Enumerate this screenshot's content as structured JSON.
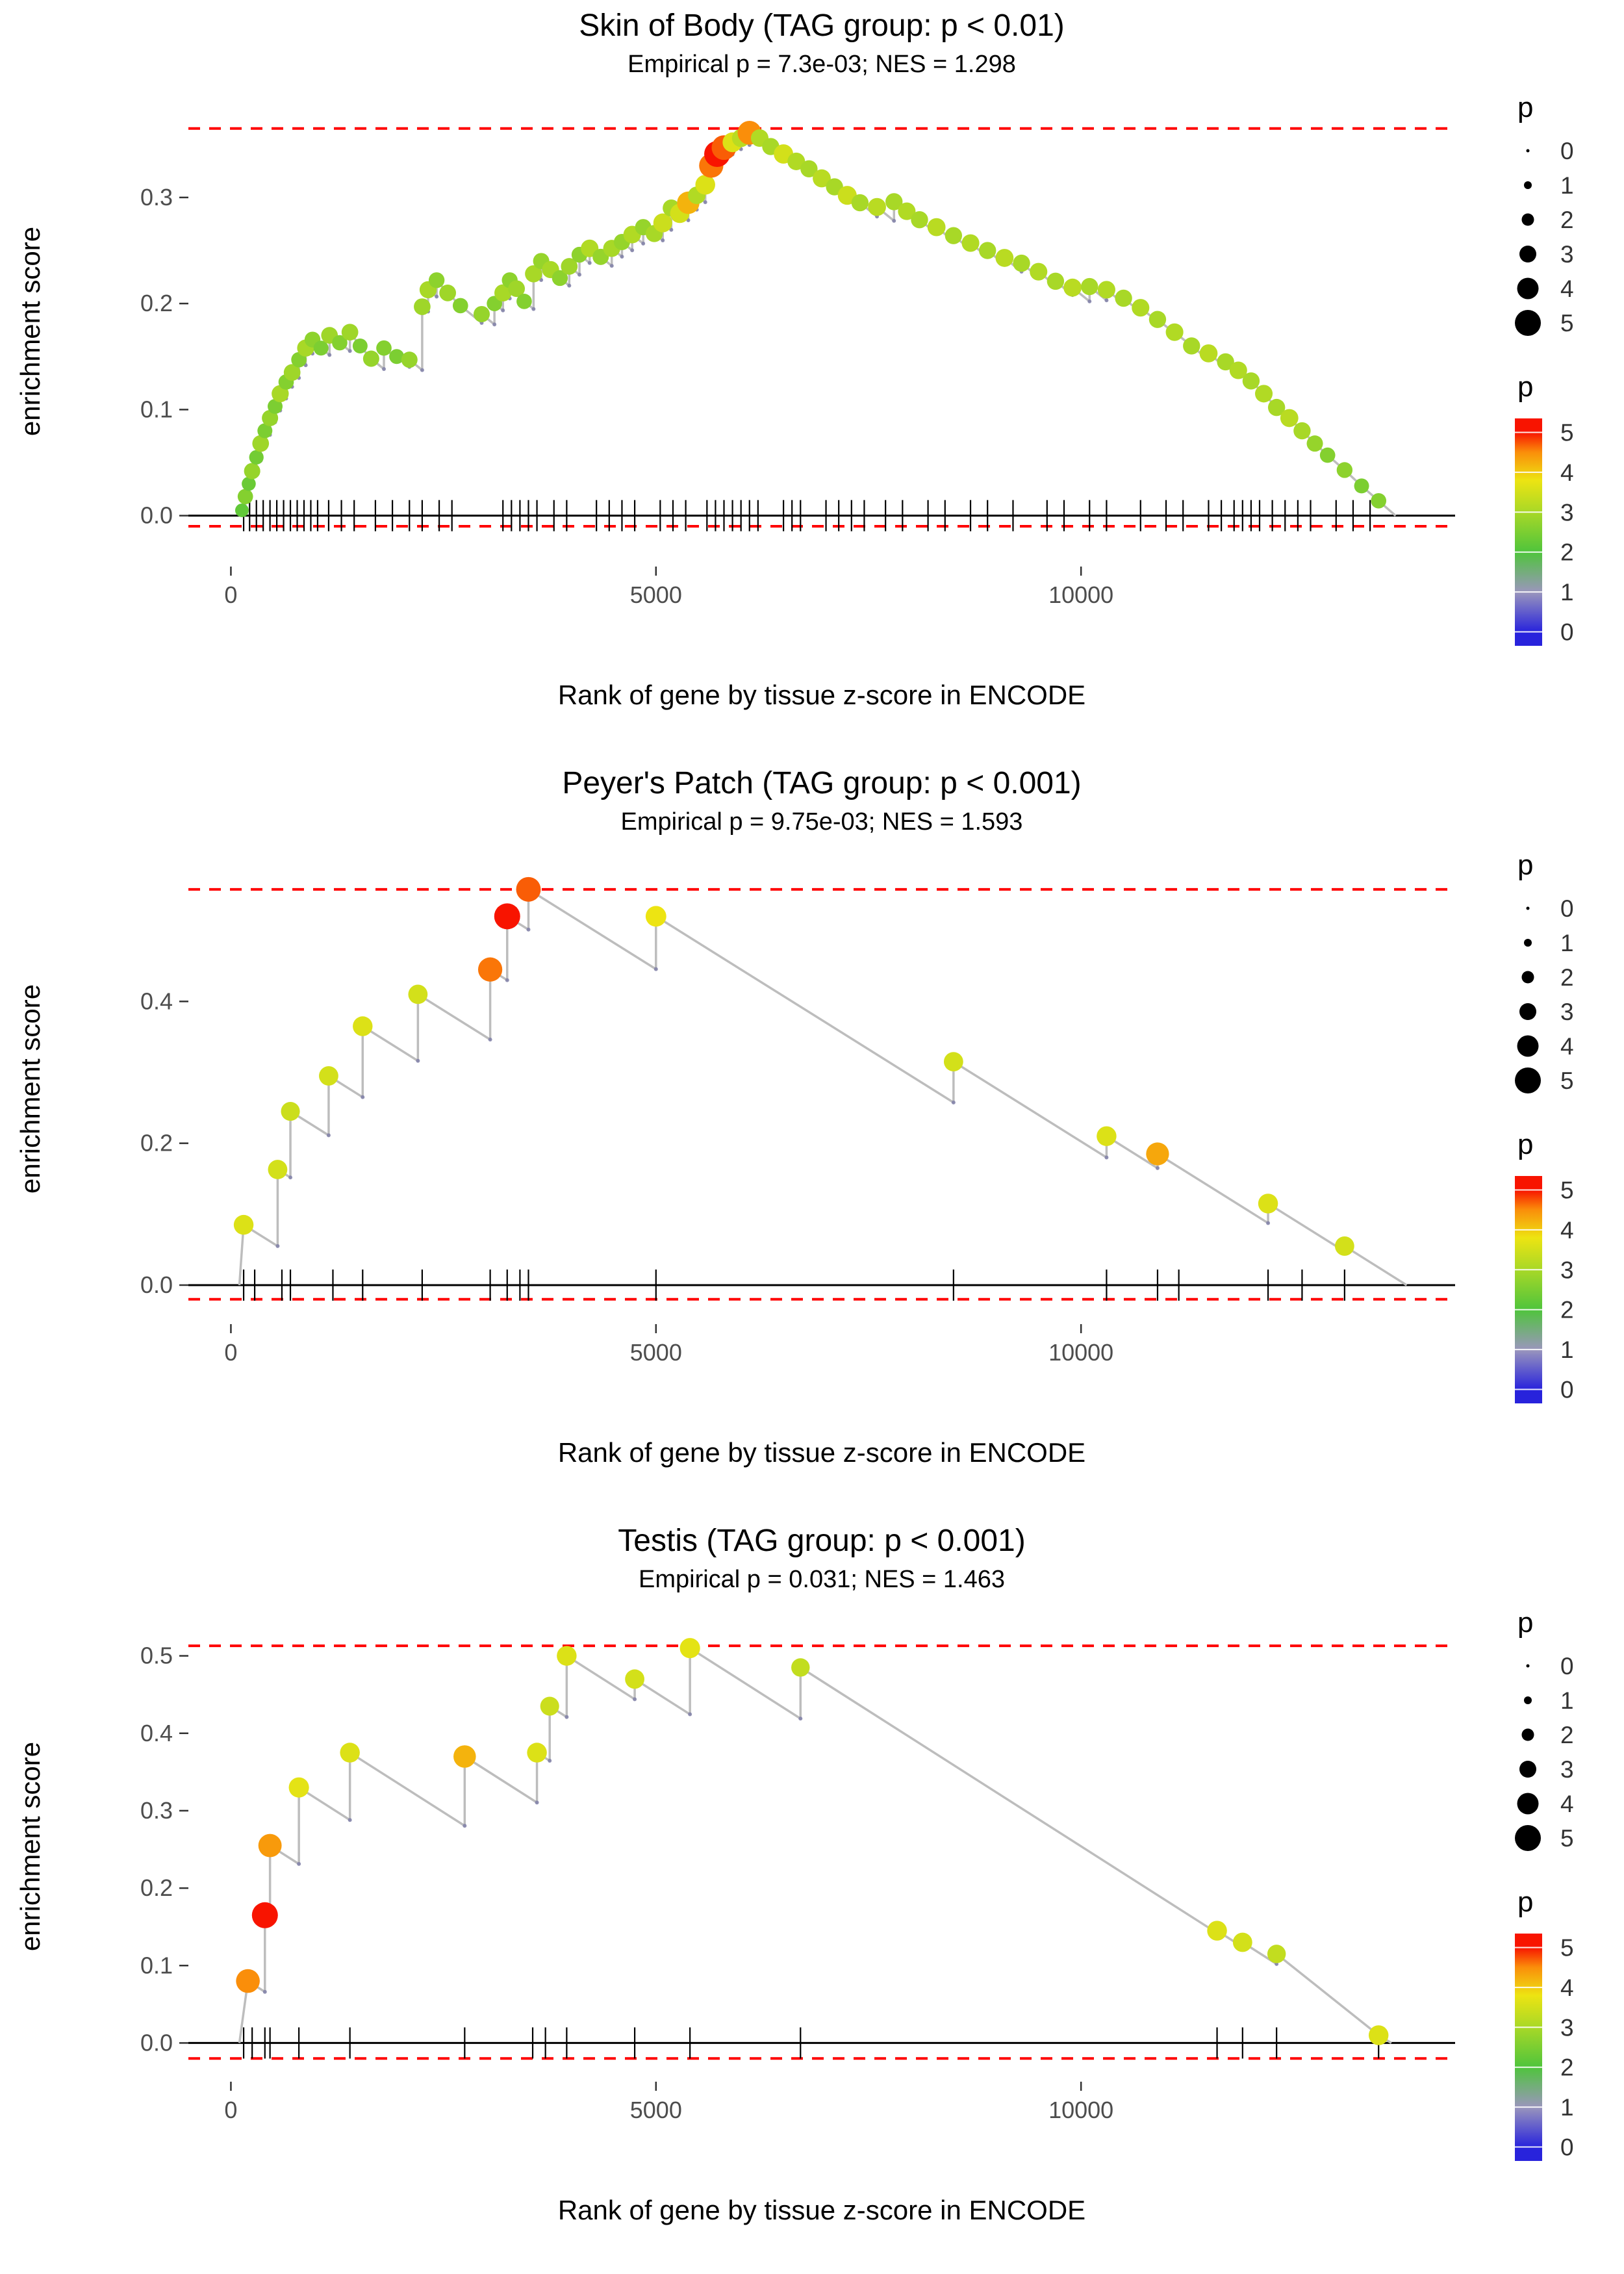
{
  "style": {
    "background": "#ffffff",
    "dashed_line_color": "#FF0000",
    "curve_color": "#BDBDBD",
    "zero_line_color": "#000000",
    "rug_color": "#000000",
    "valley_dot_color": "#8080A8",
    "axis_text_color": "#4D4D4D",
    "colormap_stops": [
      [
        0,
        "#2823DC"
      ],
      [
        1,
        "#9A96BC"
      ],
      [
        2,
        "#4FC43C"
      ],
      [
        3,
        "#A8D827"
      ],
      [
        3.8,
        "#EDE412"
      ],
      [
        4.5,
        "#FA8E0A"
      ],
      [
        5,
        "#F81400"
      ]
    ]
  },
  "legend": {
    "size_title": "p",
    "size_values": [
      "0",
      "1",
      "2",
      "3",
      "4",
      "5"
    ],
    "color_title": "p",
    "color_tick_values": [
      "5",
      "4",
      "3",
      "2",
      "1",
      "0"
    ]
  },
  "chart_data": [
    {
      "type": "line",
      "title": "Skin of Body (TAG group: p < 0.01)",
      "subtitle": "Empirical p = 7.3e-03; NES = 1.298",
      "xlabel": "Rank of gene by tissue z-score in ENCODE",
      "ylabel": "enrichment score",
      "x_tick_values": [
        0,
        5000,
        10000
      ],
      "x_tick_labels": [
        "0",
        "5000",
        "10000"
      ],
      "y_tick_values": [
        0.0,
        0.1,
        0.2,
        0.3
      ],
      "y_tick_labels": [
        "0.0",
        "0.1",
        "0.2",
        "0.3"
      ],
      "xlim": [
        -500,
        14400
      ],
      "ylim": [
        -0.048,
        0.39
      ],
      "hline_top": 0.365,
      "hline_bottom": -0.01,
      "curve_start": 100,
      "curve_end": 13700,
      "decline_rate": 6.5e-05,
      "points": [
        [
          130,
          0.005,
          2.2
        ],
        [
          170,
          0.018,
          2.6
        ],
        [
          210,
          0.03,
          2.3
        ],
        [
          250,
          0.042,
          2.8
        ],
        [
          300,
          0.055,
          2.4
        ],
        [
          350,
          0.068,
          2.9
        ],
        [
          400,
          0.08,
          2.5
        ],
        [
          460,
          0.092,
          2.8
        ],
        [
          520,
          0.103,
          2.5
        ],
        [
          580,
          0.115,
          3.0
        ],
        [
          650,
          0.126,
          2.6
        ],
        [
          720,
          0.135,
          2.9
        ],
        [
          800,
          0.147,
          2.6
        ],
        [
          880,
          0.158,
          3.0
        ],
        [
          960,
          0.166,
          2.7
        ],
        [
          1060,
          0.158,
          2.5
        ],
        [
          1160,
          0.17,
          2.9
        ],
        [
          1280,
          0.163,
          2.6
        ],
        [
          1400,
          0.173,
          2.9
        ],
        [
          1520,
          0.16,
          2.5
        ],
        [
          1650,
          0.148,
          2.8
        ],
        [
          1800,
          0.158,
          2.6
        ],
        [
          1950,
          0.15,
          2.5
        ],
        [
          2100,
          0.147,
          2.8
        ],
        [
          2250,
          0.197,
          2.9
        ],
        [
          2320,
          0.213,
          3.0
        ],
        [
          2420,
          0.222,
          2.7
        ],
        [
          2550,
          0.21,
          2.9
        ],
        [
          2700,
          0.198,
          2.6
        ],
        [
          2950,
          0.19,
          2.8
        ],
        [
          3100,
          0.2,
          2.6
        ],
        [
          3200,
          0.21,
          3.0
        ],
        [
          3280,
          0.222,
          2.7
        ],
        [
          3360,
          0.214,
          2.9
        ],
        [
          3450,
          0.202,
          2.6
        ],
        [
          3560,
          0.228,
          3.0
        ],
        [
          3650,
          0.24,
          2.8
        ],
        [
          3760,
          0.232,
          3.0
        ],
        [
          3870,
          0.224,
          2.7
        ],
        [
          3980,
          0.235,
          2.9
        ],
        [
          4100,
          0.246,
          2.7
        ],
        [
          4220,
          0.252,
          3.1
        ],
        [
          4350,
          0.244,
          2.8
        ],
        [
          4480,
          0.252,
          3.0
        ],
        [
          4600,
          0.258,
          2.8
        ],
        [
          4720,
          0.265,
          3.1
        ],
        [
          4850,
          0.272,
          2.8
        ],
        [
          4980,
          0.266,
          3.0
        ],
        [
          5080,
          0.276,
          3.4
        ],
        [
          5180,
          0.29,
          3.0
        ],
        [
          5280,
          0.285,
          3.5
        ],
        [
          5380,
          0.295,
          4.2
        ],
        [
          5480,
          0.302,
          3.1
        ],
        [
          5580,
          0.312,
          3.6
        ],
        [
          5650,
          0.33,
          4.6
        ],
        [
          5720,
          0.341,
          5.0
        ],
        [
          5800,
          0.347,
          4.7
        ],
        [
          5900,
          0.352,
          3.6
        ],
        [
          6000,
          0.356,
          3.2
        ],
        [
          6100,
          0.361,
          4.5
        ],
        [
          6220,
          0.356,
          3.1
        ],
        [
          6350,
          0.348,
          3.0
        ],
        [
          6500,
          0.341,
          3.5
        ],
        [
          6650,
          0.334,
          3.1
        ],
        [
          6800,
          0.327,
          3.0
        ],
        [
          6950,
          0.318,
          3.2
        ],
        [
          7100,
          0.31,
          3.0
        ],
        [
          7250,
          0.302,
          3.4
        ],
        [
          7400,
          0.295,
          3.0
        ],
        [
          7600,
          0.291,
          3.2
        ],
        [
          7800,
          0.296,
          3.0
        ],
        [
          7950,
          0.287,
          3.1
        ],
        [
          8100,
          0.279,
          3.0
        ],
        [
          8300,
          0.272,
          3.2
        ],
        [
          8500,
          0.264,
          3.0
        ],
        [
          8700,
          0.257,
          3.1
        ],
        [
          8900,
          0.25,
          3.0
        ],
        [
          9100,
          0.243,
          3.2
        ],
        [
          9300,
          0.238,
          3.0
        ],
        [
          9500,
          0.23,
          3.1
        ],
        [
          9700,
          0.221,
          3.0
        ],
        [
          9900,
          0.215,
          3.2
        ],
        [
          10100,
          0.216,
          3.0
        ],
        [
          10300,
          0.213,
          3.1
        ],
        [
          10500,
          0.205,
          3.0
        ],
        [
          10700,
          0.196,
          3.1
        ],
        [
          10900,
          0.185,
          3.0
        ],
        [
          11100,
          0.173,
          3.1
        ],
        [
          11300,
          0.16,
          3.0
        ],
        [
          11500,
          0.153,
          3.2
        ],
        [
          11700,
          0.145,
          3.0
        ],
        [
          11850,
          0.137,
          3.1
        ],
        [
          12000,
          0.127,
          3.0
        ],
        [
          12150,
          0.115,
          3.1
        ],
        [
          12300,
          0.102,
          3.0
        ],
        [
          12450,
          0.092,
          3.2
        ],
        [
          12600,
          0.08,
          3.0
        ],
        [
          12750,
          0.068,
          2.8
        ],
        [
          12900,
          0.057,
          2.6
        ],
        [
          13100,
          0.043,
          2.7
        ],
        [
          13300,
          0.028,
          2.5
        ],
        [
          13500,
          0.014,
          2.6
        ]
      ],
      "rug": [
        150,
        220,
        300,
        380,
        460,
        540,
        620,
        700,
        780,
        860,
        940,
        1020,
        1150,
        1300,
        1450,
        1700,
        1900,
        2100,
        2250,
        2450,
        2600,
        3200,
        3300,
        3400,
        3500,
        3600,
        3800,
        3950,
        4300,
        4450,
        4600,
        4750,
        5050,
        5200,
        5350,
        5600,
        5700,
        5800,
        5900,
        6000,
        6100,
        6200,
        6500,
        6600,
        6700,
        7000,
        7150,
        7300,
        7450,
        7700,
        7900,
        8200,
        8400,
        8700,
        8900,
        9200,
        9600,
        9800,
        10100,
        10300,
        10700,
        11000,
        11200,
        11500,
        11650,
        11800,
        11900,
        12000,
        12100,
        12250,
        12400,
        12550,
        12700,
        13000,
        13200,
        13400
      ]
    },
    {
      "type": "line",
      "title": "Peyer's Patch (TAG group: p < 0.001)",
      "subtitle": "Empirical p = 9.75e-03; NES = 1.593",
      "xlabel": "Rank of gene by tissue z-score in ENCODE",
      "ylabel": "enrichment score",
      "x_tick_values": [
        0,
        5000,
        10000
      ],
      "x_tick_labels": [
        "0",
        "5000",
        "10000"
      ],
      "y_tick_values": [
        0.0,
        0.2,
        0.4
      ],
      "y_tick_labels": [
        "0.0",
        "0.2",
        "0.4"
      ],
      "xlim": [
        -500,
        14400
      ],
      "ylim": [
        -0.055,
        0.6
      ],
      "hline_top": 0.558,
      "hline_bottom": -0.02,
      "curve_start": 100,
      "curve_end": 13830,
      "decline_rate": 7.5e-05,
      "points": [
        [
          150,
          0.085,
          3.6
        ],
        [
          550,
          0.163,
          3.5
        ],
        [
          700,
          0.245,
          3.4
        ],
        [
          1150,
          0.295,
          3.5
        ],
        [
          1550,
          0.365,
          3.6
        ],
        [
          2200,
          0.41,
          3.5
        ],
        [
          3050,
          0.445,
          4.6
        ],
        [
          3250,
          0.52,
          5.0
        ],
        [
          3500,
          0.558,
          4.7
        ],
        [
          5000,
          0.52,
          3.8
        ],
        [
          8500,
          0.315,
          3.5
        ],
        [
          10300,
          0.21,
          3.6
        ],
        [
          10900,
          0.185,
          4.3
        ],
        [
          12200,
          0.115,
          3.6
        ],
        [
          13100,
          0.055,
          3.5
        ]
      ],
      "rug": [
        150,
        280,
        600,
        700,
        1200,
        1550,
        2250,
        3050,
        3250,
        3400,
        3500,
        5000,
        8500,
        10300,
        10900,
        11150,
        12200,
        12600,
        13100
      ]
    },
    {
      "type": "line",
      "title": "Testis (TAG group: p < 0.001)",
      "subtitle": "Empirical p = 0.031; NES = 1.463",
      "xlabel": "Rank of gene by tissue z-score in ENCODE",
      "ylabel": "enrichment score",
      "x_tick_values": [
        0,
        5000,
        10000
      ],
      "x_tick_labels": [
        "0",
        "5000",
        "10000"
      ],
      "y_tick_values": [
        0.0,
        0.1,
        0.2,
        0.3,
        0.4,
        0.5
      ],
      "y_tick_labels": [
        "0.0",
        "0.1",
        "0.2",
        "0.3",
        "0.4",
        "0.5"
      ],
      "xlim": [
        -500,
        14400
      ],
      "ylim": [
        -0.05,
        0.55
      ],
      "hline_top": 0.513,
      "hline_bottom": -0.02,
      "curve_start": 100,
      "curve_end": 13650,
      "decline_rate": 7e-05,
      "points": [
        [
          200,
          0.08,
          4.5
        ],
        [
          400,
          0.165,
          5.0
        ],
        [
          460,
          0.255,
          4.4
        ],
        [
          800,
          0.33,
          3.7
        ],
        [
          1400,
          0.375,
          3.6
        ],
        [
          2750,
          0.37,
          4.2
        ],
        [
          3600,
          0.375,
          3.6
        ],
        [
          3750,
          0.435,
          3.4
        ],
        [
          3950,
          0.5,
          3.6
        ],
        [
          4750,
          0.47,
          3.5
        ],
        [
          5400,
          0.51,
          3.7
        ],
        [
          6700,
          0.485,
          3.3
        ],
        [
          11600,
          0.145,
          3.6
        ],
        [
          11900,
          0.13,
          3.5
        ],
        [
          12300,
          0.115,
          3.3
        ],
        [
          13500,
          0.01,
          3.6
        ]
      ],
      "rug": [
        150,
        250,
        400,
        460,
        800,
        1400,
        2750,
        3550,
        3700,
        3950,
        4750,
        5400,
        6700,
        11600,
        11900,
        12300,
        13500
      ]
    }
  ]
}
